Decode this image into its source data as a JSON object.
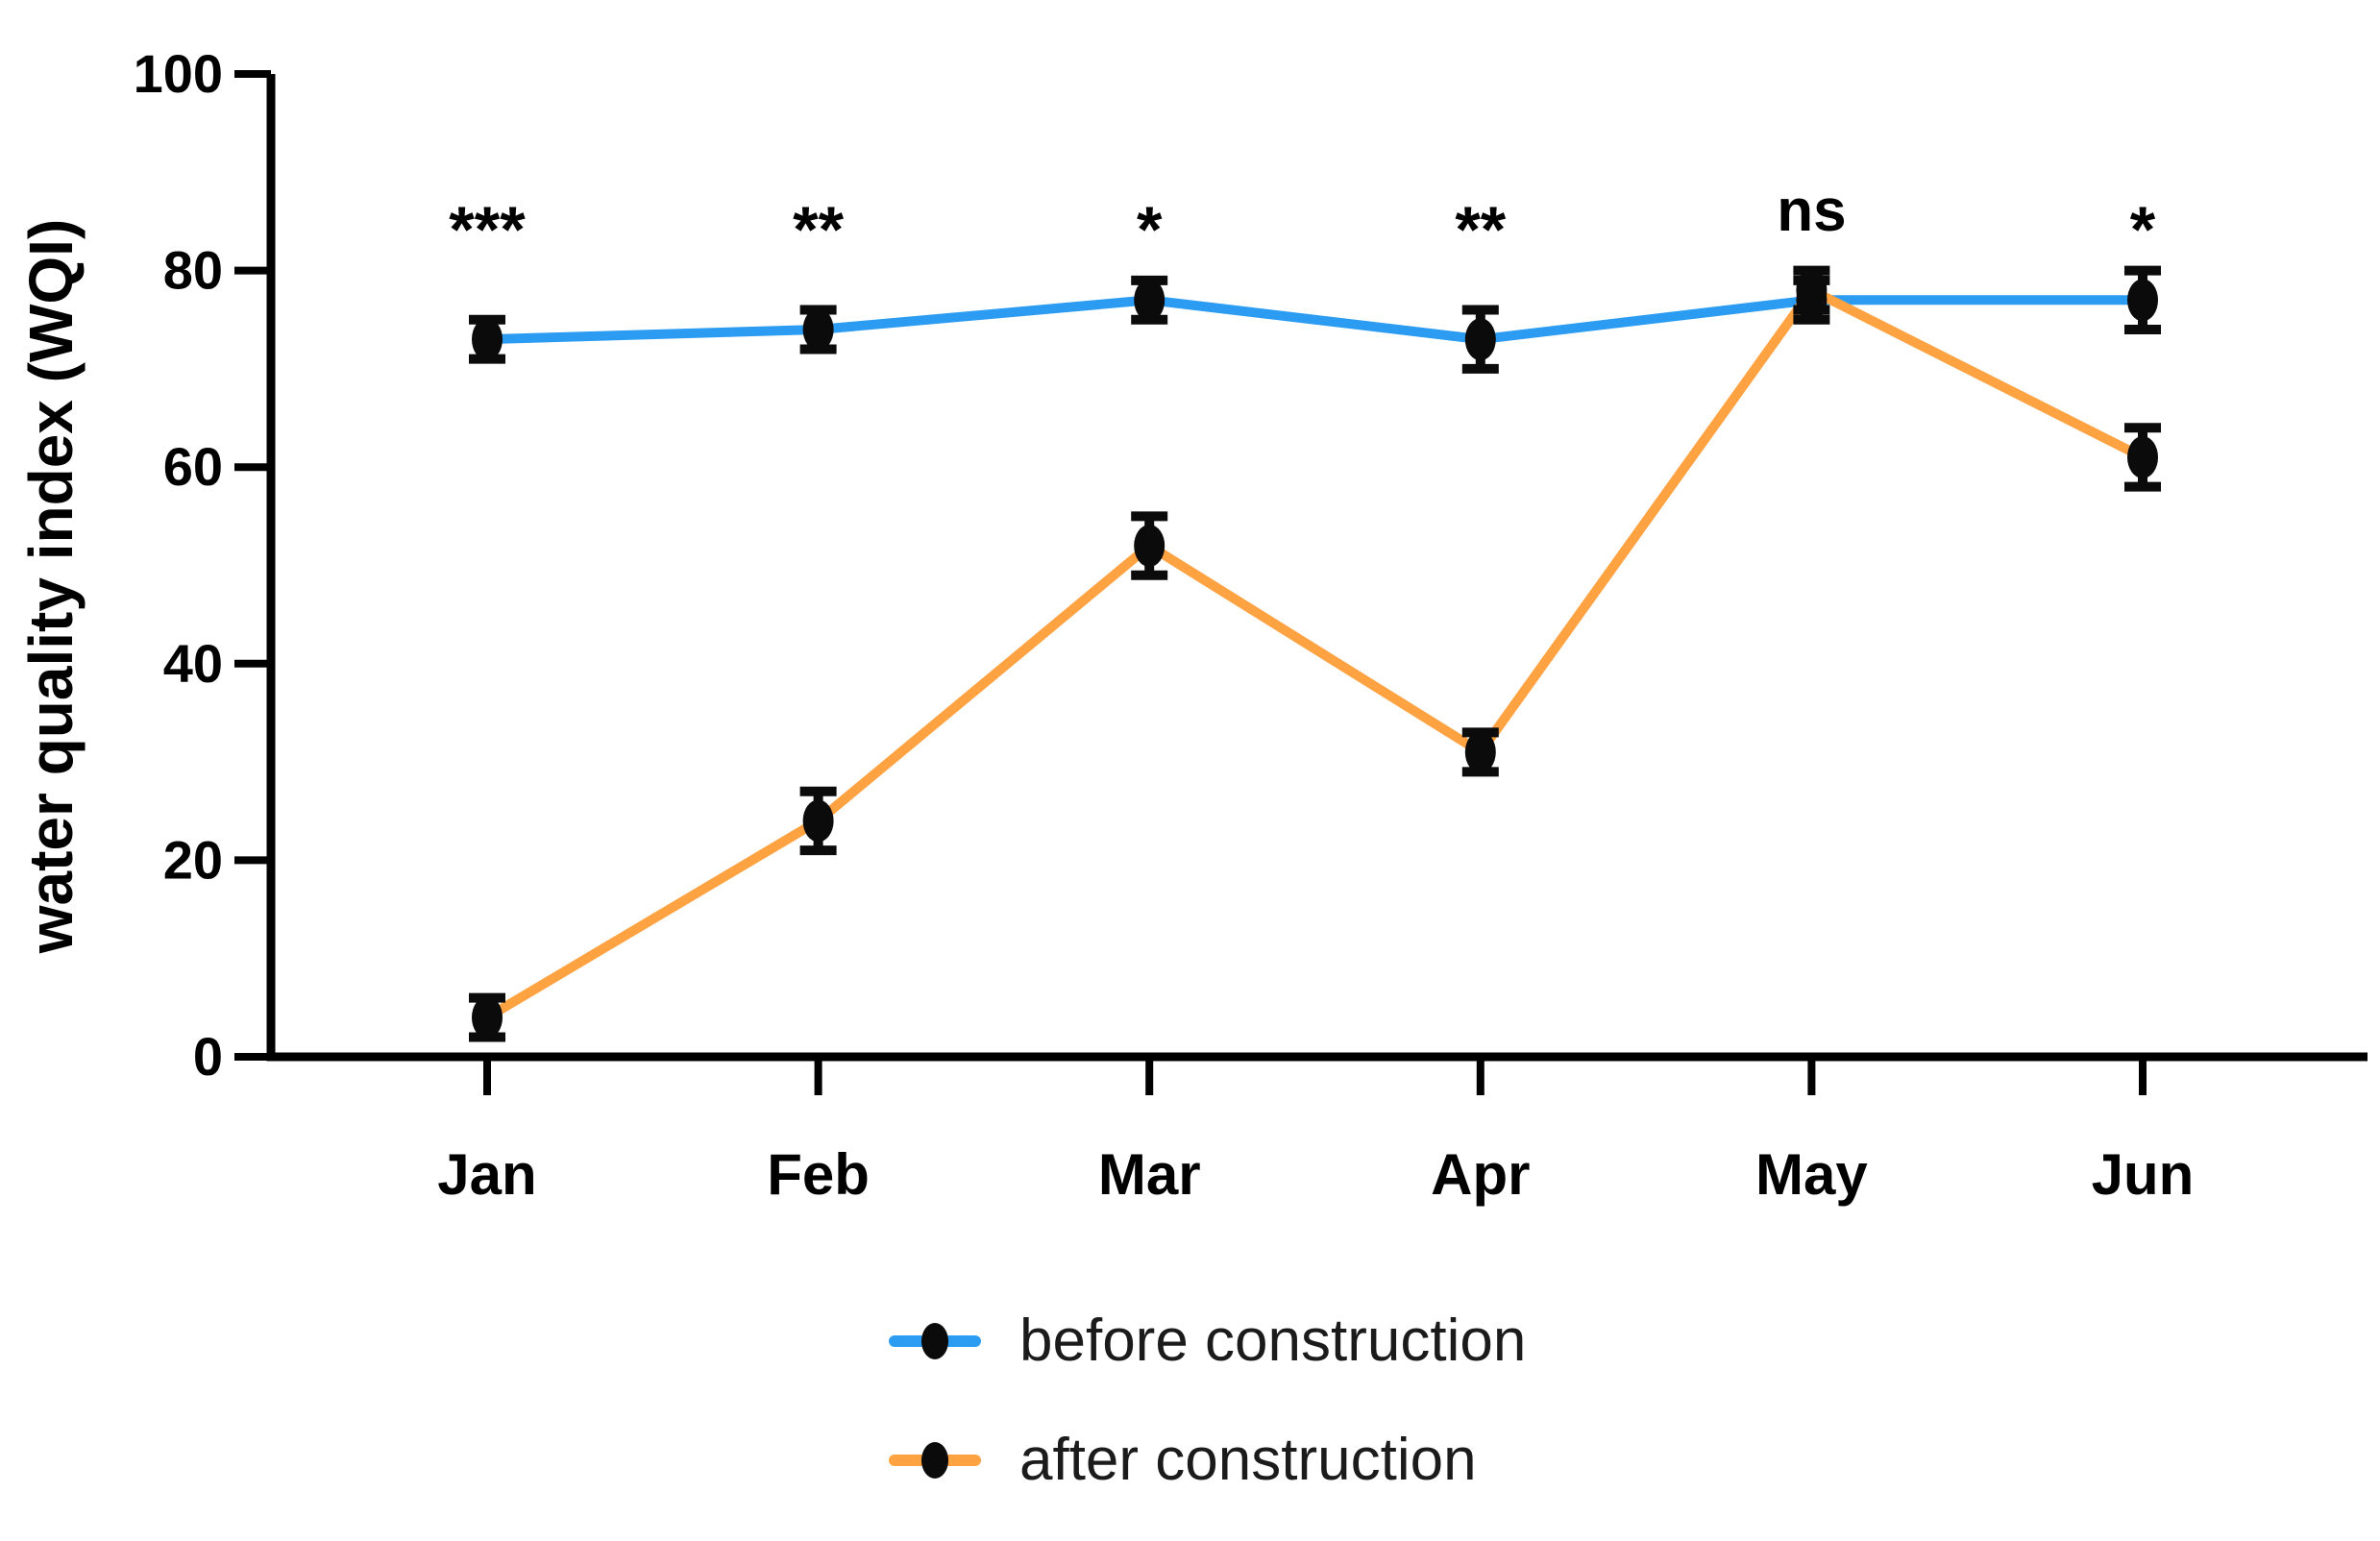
{
  "chart_data": {
    "type": "line",
    "title": "",
    "xlabel": "",
    "ylabel": "water quality index (WQI)",
    "ylim": [
      0,
      100
    ],
    "yticks": [
      0,
      20,
      40,
      60,
      80,
      100
    ],
    "categories": [
      "Jan",
      "Feb",
      "Mar",
      "Apr",
      "May",
      "Jun"
    ],
    "series": [
      {
        "name": "before construction",
        "color": "#2B9CF2",
        "values": [
          73,
          74,
          77,
          73,
          77,
          77
        ],
        "error_bars": [
          2,
          2,
          2,
          3,
          2,
          3
        ]
      },
      {
        "name": "after construction",
        "color": "#FFA242",
        "values": [
          4,
          24,
          52,
          31,
          78,
          61
        ],
        "error_bars": [
          2,
          3,
          3,
          2,
          2,
          3
        ]
      }
    ],
    "significance_labels": [
      "***",
      "**",
      "*",
      "**",
      "ns",
      "*"
    ],
    "marker_color": "#0b0b0b",
    "axis_color": "#000000",
    "grid": false,
    "legend_position": "bottom-center"
  }
}
